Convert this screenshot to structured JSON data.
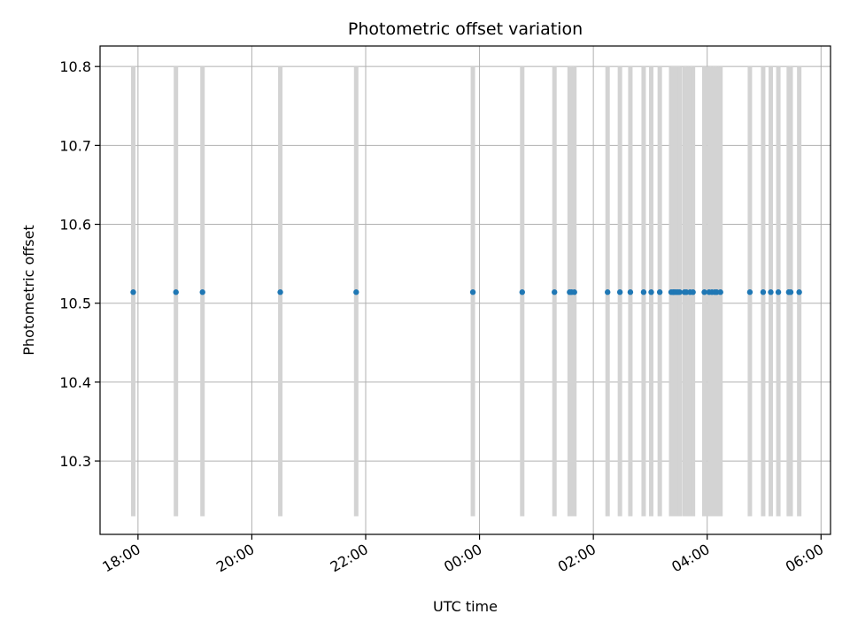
{
  "chart_data": {
    "type": "scatter",
    "title": "Photometric offset variation",
    "xlabel": "UTC time",
    "ylabel": "Photometric offset",
    "x_axis": {
      "type": "time",
      "start": "17:20",
      "end": "06:10",
      "ticks": [
        "18:00",
        "20:00",
        "22:00",
        "00:00",
        "02:00",
        "04:00",
        "06:00"
      ],
      "tick_rotation_deg": 30
    },
    "y_axis": {
      "ylim": [
        10.207,
        10.826
      ],
      "ticks": [
        10.3,
        10.4,
        10.5,
        10.6,
        10.7,
        10.8
      ]
    },
    "grid": true,
    "colors": {
      "points": "#1f77b4",
      "bands": "#d3d3d3"
    },
    "band_range": [
      10.23,
      10.8
    ],
    "x": [
      "17:55",
      "18:40",
      "19:08",
      "20:30",
      "21:50",
      "23:53",
      "00:45",
      "01:19",
      "01:35",
      "01:37",
      "01:40",
      "02:15",
      "02:28",
      "02:39",
      "02:53",
      "03:01",
      "03:10",
      "03:22",
      "03:24",
      "03:25",
      "03:27",
      "03:29",
      "03:31",
      "03:36",
      "03:38",
      "03:42",
      "03:45",
      "03:57",
      "04:02",
      "04:05",
      "04:08",
      "04:10",
      "04:14",
      "04:45",
      "04:59",
      "05:07",
      "05:15",
      "05:26",
      "05:28",
      "05:37"
    ],
    "y": [
      10.514,
      10.514,
      10.514,
      10.514,
      10.514,
      10.514,
      10.514,
      10.514,
      10.514,
      10.514,
      10.514,
      10.514,
      10.514,
      10.514,
      10.514,
      10.514,
      10.514,
      10.514,
      10.514,
      10.514,
      10.514,
      10.514,
      10.514,
      10.514,
      10.514,
      10.514,
      10.514,
      10.514,
      10.514,
      10.514,
      10.514,
      10.514,
      10.514,
      10.514,
      10.514,
      10.514,
      10.514,
      10.514,
      10.514,
      10.514
    ]
  }
}
